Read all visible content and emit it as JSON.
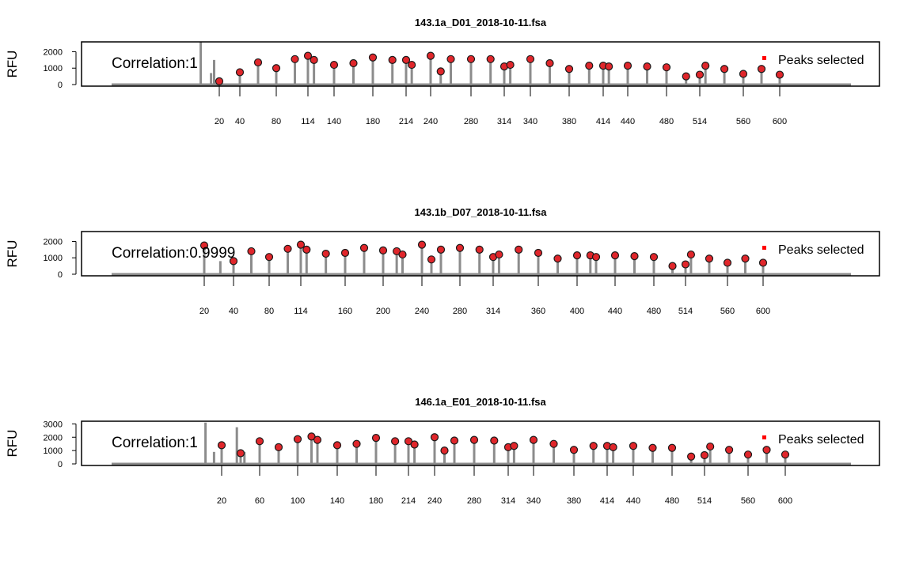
{
  "colors": {
    "trace": "#8c8c8c",
    "peak_fill": "#e0262b",
    "peak_edge": "#1a1a1a",
    "frame": "#000000",
    "legend_marker": "#ff0000"
  },
  "chart_data": [
    {
      "type": "scatter",
      "title": "143.1a_D01_2018-10-11.fsa",
      "ylabel": "RFU",
      "yticks": [
        0,
        1000,
        2000
      ],
      "ylim": [
        0,
        2600
      ],
      "annotation": "Correlation:1",
      "legend": {
        "label": "Peaks selected",
        "placement": "top-right"
      },
      "grid": false,
      "xtick_labels": [
        "20",
        "40",
        "80",
        "114",
        "140",
        "180",
        "214",
        "240",
        "280",
        "314",
        "340",
        "380",
        "414",
        "440",
        "480",
        "514",
        "560",
        "600"
      ],
      "ladder_sizes": [
        20,
        40,
        60,
        80,
        100,
        114,
        120,
        140,
        160,
        180,
        200,
        214,
        220,
        240,
        250,
        260,
        280,
        300,
        314,
        320,
        340,
        360,
        380,
        400,
        414,
        420,
        440,
        460,
        480,
        500,
        514,
        520,
        540,
        560,
        580,
        600
      ],
      "peak_rfu": [
        200,
        750,
        1350,
        1000,
        1550,
        1750,
        1500,
        1200,
        1300,
        1650,
        1500,
        1500,
        1200,
        1750,
        800,
        1550,
        1550,
        1550,
        1100,
        1200,
        1550,
        1300,
        950,
        1150,
        1150,
        1100,
        1150,
        1100,
        1050,
        500,
        600,
        1150,
        950,
        650,
        950,
        600
      ],
      "extra_peaks": [
        {
          "size": 2,
          "rfu": 2900
        },
        {
          "size": 12,
          "rfu": 700
        },
        {
          "size": 15,
          "rfu": 1500
        }
      ]
    },
    {
      "type": "scatter",
      "title": "143.1b_D07_2018-10-11.fsa",
      "ylabel": "RFU",
      "yticks": [
        0,
        1000,
        2000
      ],
      "ylim": [
        0,
        2600
      ],
      "annotation": "Correlation:0.9999",
      "legend": {
        "label": "Peaks selected",
        "placement": "top-right"
      },
      "grid": false,
      "xtick_labels": [
        "20",
        "40",
        "80",
        "114",
        "160",
        "200",
        "240",
        "280",
        "314",
        "360",
        "400",
        "440",
        "480",
        "514",
        "560",
        "600"
      ],
      "ladder_sizes": [
        20,
        40,
        60,
        80,
        100,
        114,
        120,
        140,
        160,
        180,
        200,
        214,
        220,
        240,
        250,
        260,
        280,
        300,
        314,
        320,
        340,
        360,
        380,
        400,
        414,
        420,
        440,
        460,
        480,
        500,
        514,
        520,
        540,
        560,
        580,
        600
      ],
      "peak_rfu": [
        1750,
        800,
        1400,
        1050,
        1550,
        1800,
        1500,
        1250,
        1300,
        1600,
        1450,
        1400,
        1200,
        1800,
        900,
        1500,
        1600,
        1500,
        1050,
        1200,
        1500,
        1300,
        950,
        1150,
        1150,
        1050,
        1150,
        1100,
        1050,
        500,
        600,
        1200,
        950,
        700,
        950,
        700
      ],
      "extra_peaks": [
        {
          "size": 31,
          "rfu": 800
        }
      ]
    },
    {
      "type": "scatter",
      "title": "146.1a_E01_2018-10-11.fsa",
      "ylabel": "RFU",
      "yticks": [
        0,
        1000,
        2000,
        3000
      ],
      "ylim": [
        0,
        3200
      ],
      "annotation": "Correlation:1",
      "legend": {
        "label": "Peaks selected",
        "placement": "top-right"
      },
      "grid": false,
      "xtick_labels": [
        "20",
        "60",
        "100",
        "140",
        "180",
        "214",
        "240",
        "280",
        "314",
        "340",
        "380",
        "414",
        "440",
        "480",
        "514",
        "560",
        "600"
      ],
      "ladder_sizes": [
        20,
        40,
        60,
        80,
        100,
        114,
        120,
        140,
        160,
        180,
        200,
        214,
        220,
        240,
        250,
        260,
        280,
        300,
        314,
        320,
        340,
        360,
        380,
        400,
        414,
        420,
        440,
        460,
        480,
        500,
        514,
        520,
        540,
        560,
        580,
        600
      ],
      "peak_rfu": [
        1400,
        800,
        1700,
        1250,
        1850,
        2050,
        1800,
        1400,
        1500,
        1950,
        1700,
        1700,
        1450,
        2000,
        1000,
        1750,
        1800,
        1750,
        1250,
        1350,
        1800,
        1500,
        1050,
        1350,
        1350,
        1250,
        1350,
        1200,
        1200,
        550,
        650,
        1300,
        1050,
        700,
        1050,
        700
      ],
      "extra_peaks": [
        {
          "size": 3,
          "rfu": 3100
        },
        {
          "size": 12,
          "rfu": 900
        },
        {
          "size": 36,
          "rfu": 2750
        },
        {
          "size": 44,
          "rfu": 900
        }
      ]
    }
  ]
}
